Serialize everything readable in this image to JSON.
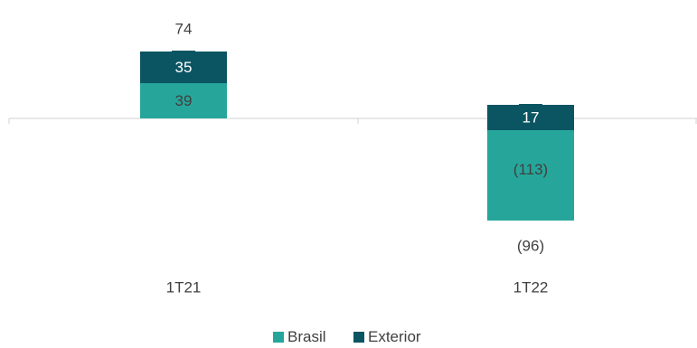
{
  "chart_data": {
    "type": "bar",
    "stacked": true,
    "categories": [
      "1T21",
      "1T22"
    ],
    "series": [
      {
        "name": "Brasil",
        "values": [
          39,
          -113
        ],
        "labels": [
          "39",
          "(113)"
        ],
        "color": "#26A69A"
      },
      {
        "name": "Exterior",
        "values": [
          35,
          17
        ],
        "labels": [
          "35",
          "17"
        ],
        "color": "#0B5563"
      }
    ],
    "totals": [
      74,
      -96
    ],
    "total_labels": [
      "74",
      "(96)"
    ],
    "legend": "bottom-center",
    "grid": false
  }
}
